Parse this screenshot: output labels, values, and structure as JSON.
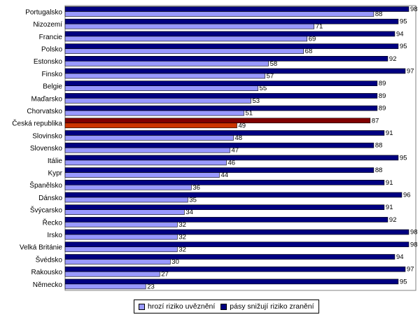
{
  "chart_data": {
    "type": "bar",
    "orientation": "horizontal",
    "categories": [
      "Portugalsko",
      "Nizozemí",
      "Francie",
      "Polsko",
      "Estonsko",
      "Finsko",
      "Belgie",
      "Maďarsko",
      "Chorvatsko",
      "Česká republika",
      "Slovinsko",
      "Slovensko",
      "Itálie",
      "Kypr",
      "Španělsko",
      "Dánsko",
      "Švýcarsko",
      "Řecko",
      "Irsko",
      "Velká Británie",
      "Švédsko",
      "Rakousko",
      "Německo"
    ],
    "series": [
      {
        "name": "pásy snižují riziko zranění",
        "color": "#000080",
        "values": [
          98,
          95,
          94,
          95,
          92,
          97,
          89,
          89,
          89,
          87,
          91,
          88,
          95,
          88,
          91,
          96,
          91,
          92,
          98,
          98,
          94,
          97,
          95
        ]
      },
      {
        "name": "hrozí riziko uvěznění",
        "color": "#9999ff",
        "values": [
          88,
          71,
          69,
          68,
          58,
          57,
          55,
          53,
          51,
          49,
          48,
          47,
          46,
          44,
          36,
          35,
          34,
          32,
          32,
          32,
          30,
          27,
          23
        ]
      }
    ],
    "highlight": {
      "category": "Česká republika",
      "colors": [
        "#800000",
        "#cc3300"
      ]
    },
    "xlim": [
      0,
      100
    ],
    "grid": false,
    "legend_position": "bottom"
  }
}
